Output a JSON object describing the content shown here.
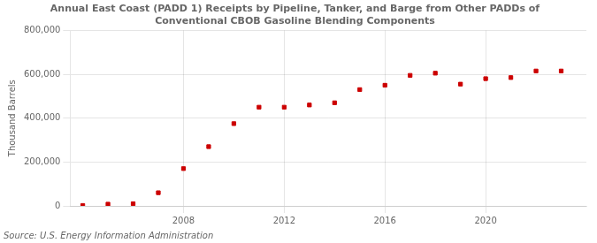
{
  "chart_data": {
    "type": "scatter",
    "title": "Annual East Coast (PADD 1) Receipts by Pipeline, Tanker, and Barge from Other PADDs of\nConventional CBOB Gasoline Blending Components",
    "ylabel": "Thousand Barrels",
    "source": "Source: U.S. Energy Information Administration",
    "x": [
      2004,
      2005,
      2006,
      2007,
      2008,
      2009,
      2010,
      2011,
      2012,
      2013,
      2014,
      2015,
      2016,
      2017,
      2018,
      2019,
      2020,
      2021,
      2022,
      2023
    ],
    "values": [
      2000,
      8000,
      10000,
      60000,
      170000,
      270000,
      375000,
      450000,
      450000,
      460000,
      470000,
      530000,
      550000,
      595000,
      605000,
      555000,
      580000,
      585000,
      615000,
      615000
    ],
    "color": "#cc0000",
    "marker": "square",
    "xlim": [
      2003.5,
      2024
    ],
    "xticks": [
      2008,
      2012,
      2016,
      2020
    ],
    "ylim": [
      0,
      800000
    ],
    "yticks": [
      0,
      {
        "value": 200000,
        "label": "200,000"
      },
      {
        "value": 400000,
        "label": "400,000"
      },
      {
        "value": 600000,
        "label": "600,000"
      },
      {
        "value": 800000,
        "label": "800,000"
      }
    ],
    "grid": true
  }
}
